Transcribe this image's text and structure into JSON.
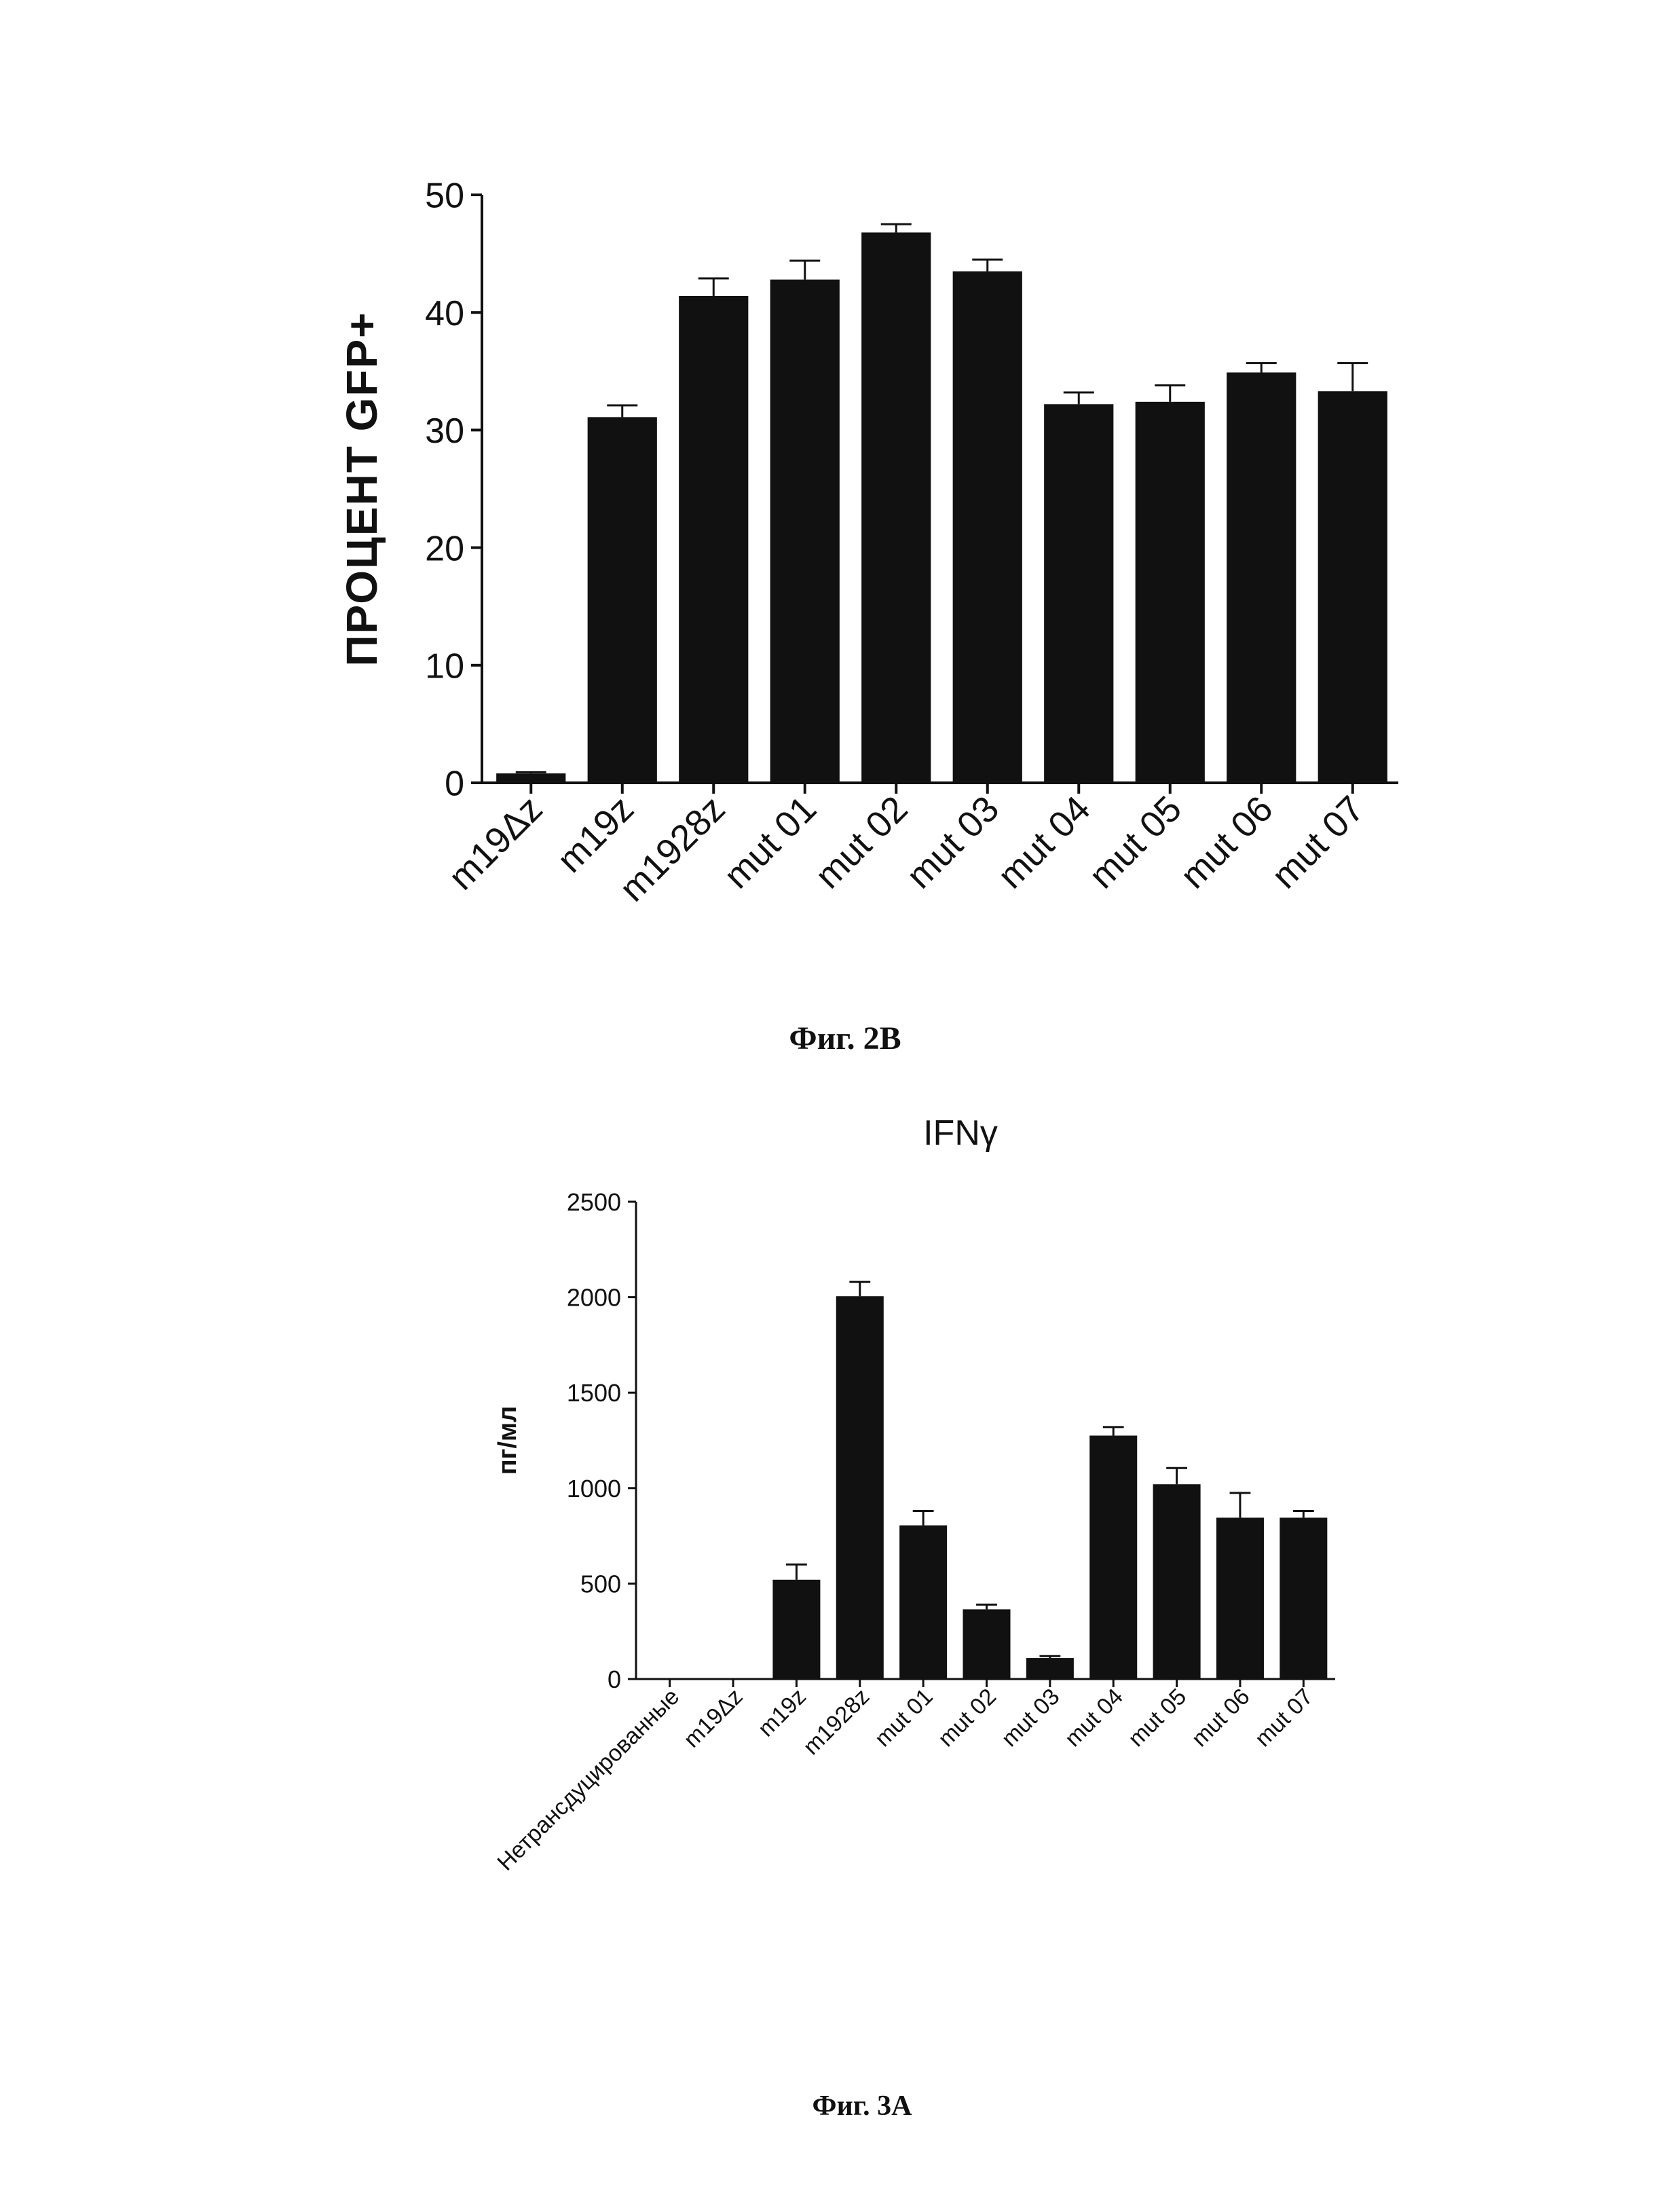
{
  "chart_data": [
    {
      "type": "bar",
      "ylabel": "ПРОЦЕНТ GFP+",
      "categories": [
        "m19Δz",
        "m19z",
        "m1928z",
        "mut 01",
        "mut 02",
        "mut 03",
        "mut 04",
        "mut 05",
        "mut 06",
        "mut 07"
      ],
      "values": [
        0.8,
        31.1,
        41.4,
        42.8,
        46.8,
        43.5,
        32.2,
        32.4,
        34.9,
        33.3
      ],
      "errors": [
        0.1,
        1.0,
        1.5,
        1.6,
        0.7,
        1.0,
        1.0,
        1.4,
        0.8,
        2.4
      ],
      "ylim": [
        0,
        50
      ],
      "yticks": [
        "0",
        "10",
        "20",
        "30",
        "40",
        "50"
      ],
      "color": "#111111"
    },
    {
      "type": "bar",
      "title": "IFNγ",
      "ylabel": "пг/мл",
      "categories": [
        "Нетрансдуцированные",
        "m19Δz",
        "m19z",
        "m1928z",
        "mut 01",
        "mut 02",
        "mut 03",
        "mut 04",
        "mut 05",
        "mut 06",
        "mut 07"
      ],
      "values": [
        0,
        0,
        520,
        2005,
        805,
        365,
        110,
        1275,
        1020,
        845,
        845
      ],
      "errors": [
        0,
        0,
        80,
        75,
        75,
        25,
        10,
        45,
        85,
        130,
        35
      ],
      "ylim": [
        0,
        2500
      ],
      "yticks": [
        "0",
        "500",
        "1000",
        "1500",
        "2000",
        "2500"
      ],
      "color": "#111111"
    }
  ],
  "captions": {
    "fig1": "Фиг. 2В",
    "fig2": "Фиг. 3А"
  }
}
